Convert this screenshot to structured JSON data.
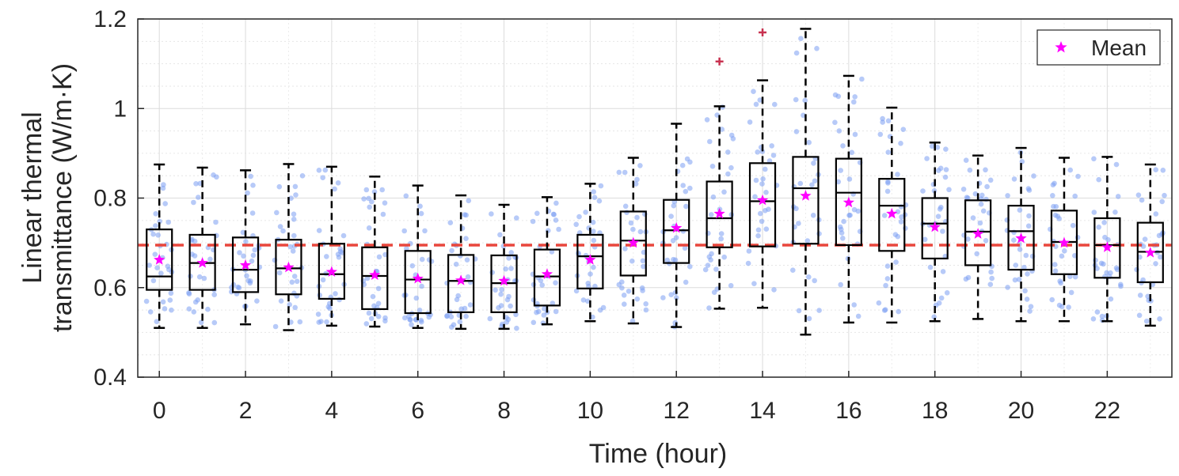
{
  "chart_data": {
    "type": "box",
    "xlabel": "Time (hour)",
    "ylabel_line1": "Linear thermal",
    "ylabel_line2": "transmittance (W/m·K)",
    "xlim": [
      -0.5,
      23.5
    ],
    "ylim": [
      0.4,
      1.2
    ],
    "x_ticks": [
      0,
      2,
      4,
      6,
      8,
      10,
      12,
      14,
      16,
      18,
      20,
      22
    ],
    "x_tick_labels": [
      "0",
      "2",
      "4",
      "6",
      "8",
      "10",
      "12",
      "14",
      "16",
      "18",
      "20",
      "22"
    ],
    "y_ticks": [
      0.4,
      0.6,
      0.8,
      1.0,
      1.2
    ],
    "y_tick_labels": [
      "0.4",
      "0.6",
      "0.8",
      "1",
      "1.2"
    ],
    "y_minor_step": 0.05,
    "grid": true,
    "reference_line": {
      "value": 0.695,
      "color": "#e8463c",
      "style": "dashed"
    },
    "legend": {
      "position": "top-right",
      "entries": [
        "Mean"
      ]
    },
    "colors": {
      "box": "#000000",
      "mean": "#ff00ff",
      "outlier": "#c83250",
      "points": "#7b9ff2",
      "grid": "#e0e0e0"
    },
    "boxes": [
      {
        "hour": 0,
        "whisker_low": 0.51,
        "q1": 0.595,
        "median": 0.625,
        "q3": 0.73,
        "whisker_high": 0.875,
        "mean": 0.662,
        "outliers": []
      },
      {
        "hour": 1,
        "whisker_low": 0.51,
        "q1": 0.595,
        "median": 0.655,
        "q3": 0.718,
        "whisker_high": 0.868,
        "mean": 0.655,
        "outliers": []
      },
      {
        "hour": 2,
        "whisker_low": 0.518,
        "q1": 0.59,
        "median": 0.64,
        "q3": 0.712,
        "whisker_high": 0.862,
        "mean": 0.65,
        "outliers": []
      },
      {
        "hour": 3,
        "whisker_low": 0.505,
        "q1": 0.585,
        "median": 0.643,
        "q3": 0.707,
        "whisker_high": 0.876,
        "mean": 0.645,
        "outliers": []
      },
      {
        "hour": 4,
        "whisker_low": 0.515,
        "q1": 0.575,
        "median": 0.63,
        "q3": 0.698,
        "whisker_high": 0.87,
        "mean": 0.635,
        "outliers": []
      },
      {
        "hour": 5,
        "whisker_low": 0.513,
        "q1": 0.552,
        "median": 0.626,
        "q3": 0.69,
        "whisker_high": 0.848,
        "mean": 0.628,
        "outliers": []
      },
      {
        "hour": 6,
        "whisker_low": 0.51,
        "q1": 0.543,
        "median": 0.618,
        "q3": 0.682,
        "whisker_high": 0.828,
        "mean": 0.62,
        "outliers": []
      },
      {
        "hour": 7,
        "whisker_low": 0.508,
        "q1": 0.545,
        "median": 0.615,
        "q3": 0.673,
        "whisker_high": 0.806,
        "mean": 0.616,
        "outliers": []
      },
      {
        "hour": 8,
        "whisker_low": 0.508,
        "q1": 0.545,
        "median": 0.61,
        "q3": 0.672,
        "whisker_high": 0.785,
        "mean": 0.615,
        "outliers": []
      },
      {
        "hour": 9,
        "whisker_low": 0.518,
        "q1": 0.56,
        "median": 0.625,
        "q3": 0.685,
        "whisker_high": 0.802,
        "mean": 0.63,
        "outliers": []
      },
      {
        "hour": 10,
        "whisker_low": 0.525,
        "q1": 0.598,
        "median": 0.67,
        "q3": 0.718,
        "whisker_high": 0.832,
        "mean": 0.662,
        "outliers": []
      },
      {
        "hour": 11,
        "whisker_low": 0.52,
        "q1": 0.627,
        "median": 0.705,
        "q3": 0.77,
        "whisker_high": 0.89,
        "mean": 0.7,
        "outliers": []
      },
      {
        "hour": 12,
        "whisker_low": 0.512,
        "q1": 0.655,
        "median": 0.728,
        "q3": 0.796,
        "whisker_high": 0.966,
        "mean": 0.733,
        "outliers": []
      },
      {
        "hour": 13,
        "whisker_low": 0.553,
        "q1": 0.69,
        "median": 0.755,
        "q3": 0.837,
        "whisker_high": 1.005,
        "mean": 0.765,
        "outliers": [
          1.105
        ]
      },
      {
        "hour": 14,
        "whisker_low": 0.555,
        "q1": 0.692,
        "median": 0.793,
        "q3": 0.878,
        "whisker_high": 1.063,
        "mean": 0.795,
        "outliers": [
          1.17
        ]
      },
      {
        "hour": 15,
        "whisker_low": 0.495,
        "q1": 0.698,
        "median": 0.822,
        "q3": 0.892,
        "whisker_high": 1.178,
        "mean": 0.805,
        "outliers": []
      },
      {
        "hour": 16,
        "whisker_low": 0.522,
        "q1": 0.695,
        "median": 0.812,
        "q3": 0.888,
        "whisker_high": 1.073,
        "mean": 0.79,
        "outliers": []
      },
      {
        "hour": 17,
        "whisker_low": 0.522,
        "q1": 0.682,
        "median": 0.783,
        "q3": 0.843,
        "whisker_high": 1.002,
        "mean": 0.765,
        "outliers": []
      },
      {
        "hour": 18,
        "whisker_low": 0.525,
        "q1": 0.665,
        "median": 0.743,
        "q3": 0.8,
        "whisker_high": 0.924,
        "mean": 0.735,
        "outliers": []
      },
      {
        "hour": 19,
        "whisker_low": 0.53,
        "q1": 0.65,
        "median": 0.725,
        "q3": 0.795,
        "whisker_high": 0.895,
        "mean": 0.72,
        "outliers": []
      },
      {
        "hour": 20,
        "whisker_low": 0.525,
        "q1": 0.64,
        "median": 0.726,
        "q3": 0.783,
        "whisker_high": 0.912,
        "mean": 0.71,
        "outliers": []
      },
      {
        "hour": 21,
        "whisker_low": 0.525,
        "q1": 0.63,
        "median": 0.702,
        "q3": 0.772,
        "whisker_high": 0.89,
        "mean": 0.7,
        "outliers": []
      },
      {
        "hour": 22,
        "whisker_low": 0.525,
        "q1": 0.622,
        "median": 0.695,
        "q3": 0.755,
        "whisker_high": 0.892,
        "mean": 0.69,
        "outliers": []
      },
      {
        "hour": 23,
        "whisker_low": 0.515,
        "q1": 0.612,
        "median": 0.68,
        "q3": 0.745,
        "whisker_high": 0.875,
        "mean": 0.678,
        "outliers": []
      }
    ]
  }
}
